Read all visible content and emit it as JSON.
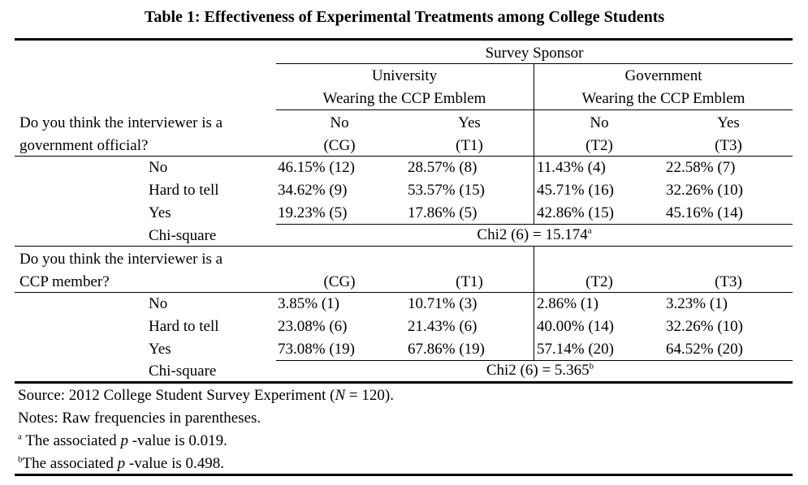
{
  "title": "Table 1: Effectiveness of Experimental Treatments among College Students",
  "header": {
    "survey_sponsor": "Survey Sponsor",
    "university": "University",
    "government": "Government",
    "wearing_emblem": "Wearing the CCP Emblem"
  },
  "q1": {
    "line1": "Do you think the interviewer is a",
    "line2": "government official?",
    "col_no": "No",
    "col_yes": "Yes",
    "groups": [
      "(CG)",
      "(T1)",
      "(T2)",
      "(T3)"
    ],
    "rows": [
      {
        "label": "No",
        "cells": [
          "46.15% (12)",
          "28.57% (8)",
          "11.43% (4)",
          "22.58% (7)"
        ]
      },
      {
        "label": "Hard to tell",
        "cells": [
          "34.62% (9)",
          "53.57% (15)",
          "45.71% (16)",
          "32.26% (10)"
        ]
      },
      {
        "label": "Yes",
        "cells": [
          "19.23% (5)",
          "17.86% (5)",
          "42.86% (15)",
          "45.16% (14)"
        ]
      }
    ],
    "chi_label": "Chi-square",
    "chi_value": "Chi2 (6) = 15.174",
    "chi_note": "a"
  },
  "q2": {
    "line1": "Do you think the interviewer is a",
    "line2": "CCP member?",
    "groups": [
      "(CG)",
      "(T1)",
      "(T2)",
      "(T3)"
    ],
    "rows": [
      {
        "label": "No",
        "cells": [
          "3.85% (1)",
          "10.71% (3)",
          "2.86% (1)",
          "3.23% (1)"
        ]
      },
      {
        "label": "Hard to tell",
        "cells": [
          "23.08% (6)",
          "21.43% (6)",
          "40.00% (14)",
          "32.26% (10)"
        ]
      },
      {
        "label": "Yes",
        "cells": [
          "73.08% (19)",
          "67.86% (19)",
          "57.14% (20)",
          "64.52% (20)"
        ]
      }
    ],
    "chi_label": "Chi-square",
    "chi_value": "Chi2 (6) = 5.365",
    "chi_note": "b"
  },
  "notes": {
    "source_pre": "Source: 2012 College Student Survey Experiment (",
    "source_n": "N",
    "source_post": " = 120).",
    "raw": "Notes: Raw frequencies in parentheses.",
    "a_mark": "a",
    "a_pre": "The associated ",
    "p": "p",
    "a_post": " -value is 0.019.",
    "b_mark": "b",
    "b_pre": "The associated ",
    "b_post": " -value is 0.498."
  }
}
